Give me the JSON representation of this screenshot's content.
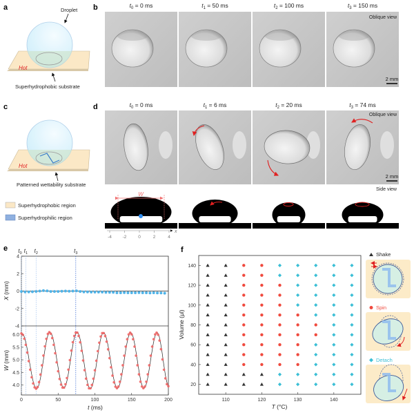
{
  "panels": {
    "a": {
      "label": "a",
      "droplet": "Droplet",
      "hot": "Hot",
      "substrate": "Superhydrophobic substrate"
    },
    "b": {
      "label": "b",
      "view": "Oblique view",
      "scale": "2 mm",
      "frames": [
        {
          "var": "t",
          "sub": "0",
          "value": " = 0 ms"
        },
        {
          "var": "t",
          "sub": "1",
          "value": " = 50 ms"
        },
        {
          "var": "t",
          "sub": "2",
          "value": " = 100 ms"
        },
        {
          "var": "t",
          "sub": "3",
          "value": " = 150 ms"
        }
      ]
    },
    "c": {
      "label": "c",
      "hot": "Hot",
      "substrate": "Patterned wettability substrate"
    },
    "d": {
      "label": "d",
      "view": "Oblique view",
      "side_view": "Side view",
      "scale": "2 mm",
      "width_label": "W",
      "axis_label": "x",
      "axis_ticks": [
        "-4",
        "-2",
        "0",
        "2",
        "4"
      ],
      "frames": [
        {
          "var": "t",
          "sub": "0",
          "value": " = 0 ms"
        },
        {
          "var": "t",
          "sub": "1",
          "value": " = 6 ms"
        },
        {
          "var": "t",
          "sub": "2",
          "value": " = 20 ms"
        },
        {
          "var": "t",
          "sub": "3",
          "value": " = 74 ms"
        }
      ]
    },
    "legend": [
      {
        "label": "Superhydrophobic region",
        "color": "#fbe8c6"
      },
      {
        "label": "Superhydrophilic region",
        "color": "#8fb0e0"
      }
    ],
    "e": {
      "label": "e"
    },
    "f": {
      "label": "f",
      "insets": [
        {
          "label": "Shake",
          "color": "#333333"
        },
        {
          "label": "Spin",
          "color": "#f04a3e"
        },
        {
          "label": "Detach",
          "color": "#3bbfd6"
        }
      ]
    }
  },
  "chart_data": [
    {
      "panel": "e",
      "type": "scatter",
      "xlabel_var": "t",
      "xlabel_unit": " (ms)",
      "xlim": [
        0,
        200
      ],
      "xticks": [
        "0",
        "50",
        "100",
        "150",
        "200"
      ],
      "time_markers": [
        {
          "var": "t",
          "sub": "0",
          "t": 0
        },
        {
          "var": "t",
          "sub": "1",
          "t": 6
        },
        {
          "var": "t",
          "sub": "2",
          "t": 20
        },
        {
          "var": "t",
          "sub": "3",
          "t": 74
        }
      ],
      "subplots": [
        {
          "ylabel_var": "X",
          "ylabel_unit": " (mm)",
          "ylim": [
            -4,
            4
          ],
          "yticks": [
            "4",
            "2",
            "0",
            "-2",
            "-4"
          ],
          "color": "#4fb3e8",
          "x": [
            0,
            5,
            10,
            15,
            20,
            25,
            30,
            35,
            40,
            45,
            50,
            55,
            60,
            65,
            70,
            75,
            80,
            85,
            90,
            95,
            100,
            105,
            110,
            115,
            120,
            125,
            130,
            135,
            140,
            145,
            150,
            155,
            160,
            165,
            170,
            175,
            180,
            185,
            190,
            195
          ],
          "values": [
            -0.05,
            -0.1,
            -0.1,
            -0.08,
            -0.05,
            0.0,
            0.05,
            0.02,
            -0.05,
            -0.05,
            -0.05,
            -0.02,
            0.0,
            -0.02,
            0.0,
            0.02,
            -0.05,
            -0.1,
            -0.1,
            -0.12,
            -0.12,
            -0.12,
            -0.12,
            -0.15,
            -0.15,
            -0.15,
            -0.2,
            -0.2,
            -0.18,
            -0.2,
            -0.2,
            -0.2,
            -0.18,
            -0.2,
            -0.2,
            -0.22,
            -0.2,
            -0.22,
            -0.22,
            -0.25
          ]
        },
        {
          "ylabel_var": "W",
          "ylabel_unit": " (mm)",
          "ylim": [
            3.6,
            6.35
          ],
          "yticks": [
            "6.0",
            "5.5",
            "5.0",
            "4.5",
            "4.0"
          ],
          "color": "#f06565",
          "extrema_t": [
            0,
            20,
            38,
            57,
            75,
            93,
            111,
            130,
            148,
            166,
            184,
            200
          ],
          "extrema_values": [
            6.05,
            3.85,
            6.1,
            3.88,
            6.1,
            3.85,
            6.08,
            3.87,
            6.08,
            3.87,
            6.08,
            3.95
          ]
        }
      ]
    },
    {
      "panel": "f",
      "type": "scatter",
      "xlabel_var": "T",
      "xlabel_unit": " (°C)",
      "ylabel": "Volume (μl)",
      "xlim": [
        102.5,
        147.5
      ],
      "ylim": [
        10,
        150
      ],
      "xticks": [
        "110",
        "120",
        "130",
        "140"
      ],
      "yticks": [
        "20",
        "40",
        "60",
        "80",
        "100",
        "120",
        "140"
      ],
      "temperatures": [
        105,
        110,
        115,
        120,
        125,
        130,
        135,
        140,
        145
      ],
      "volumes": [
        140,
        130,
        120,
        110,
        100,
        90,
        80,
        70,
        60,
        50,
        40,
        30,
        20
      ],
      "legend": {
        "S": "Shake",
        "P": "Spin",
        "D": "Detach"
      },
      "states": [
        "SSPPDDDDD",
        "SSPPDDDDD",
        "SSPPPDDDD",
        "SSPPPDDDD",
        "SSPPPDDDD",
        "SSPPPPDDD",
        "SSPPPPPDD",
        "SSPPPPPDD",
        "SSPPPPDDD",
        "SSPPPPDDD",
        "SSPPPPDDD",
        "SSSSDDDDD",
        "SSSSDDDDD"
      ]
    }
  ]
}
